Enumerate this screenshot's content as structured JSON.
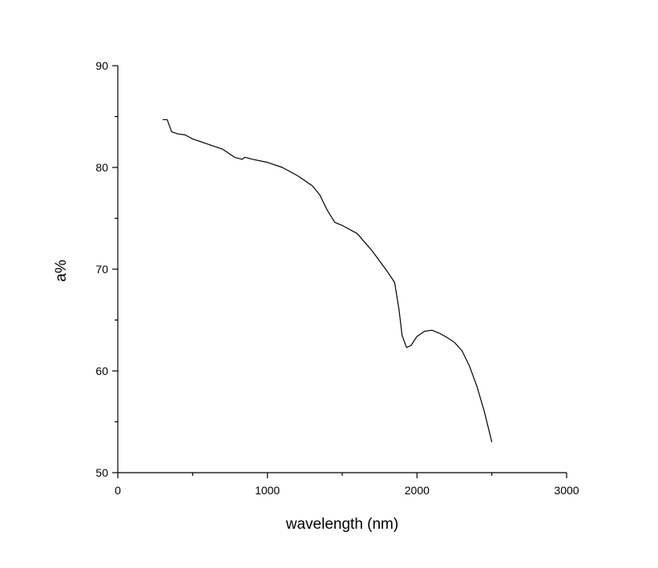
{
  "chart_data": {
    "type": "line",
    "x_label": "wavelength (nm)",
    "y_label": "a%",
    "xlim": [
      0,
      3000
    ],
    "xticks": [
      0,
      1000,
      2000,
      3000
    ],
    "xminorticks": [
      500,
      1500,
      2500
    ],
    "ylim": [
      50,
      90
    ],
    "yticks": [
      50,
      60,
      70,
      80,
      90
    ],
    "yminorticks": [
      55,
      65,
      75,
      85
    ],
    "grid": false,
    "series": [
      {
        "color": "#000000",
        "x": [
          300,
          330,
          360,
          400,
          450,
          500,
          600,
          700,
          780,
          830,
          850,
          900,
          1000,
          1100,
          1200,
          1300,
          1350,
          1400,
          1450,
          1500,
          1600,
          1700,
          1800,
          1850,
          1880,
          1900,
          1930,
          1960,
          2000,
          2050,
          2100,
          2150,
          2200,
          2250,
          2300,
          2350,
          2400,
          2450,
          2500
        ],
        "values": [
          84.7,
          84.7,
          83.5,
          83.3,
          83.2,
          82.8,
          82.3,
          81.8,
          81.0,
          80.8,
          81.0,
          80.8,
          80.5,
          80.0,
          79.2,
          78.2,
          77.3,
          75.8,
          74.6,
          74.3,
          73.5,
          71.8,
          69.8,
          68.7,
          66.0,
          63.5,
          62.3,
          62.5,
          63.4,
          63.9,
          64.0,
          63.7,
          63.3,
          62.8,
          62.0,
          60.5,
          58.5,
          56.0,
          53.0
        ]
      }
    ]
  }
}
